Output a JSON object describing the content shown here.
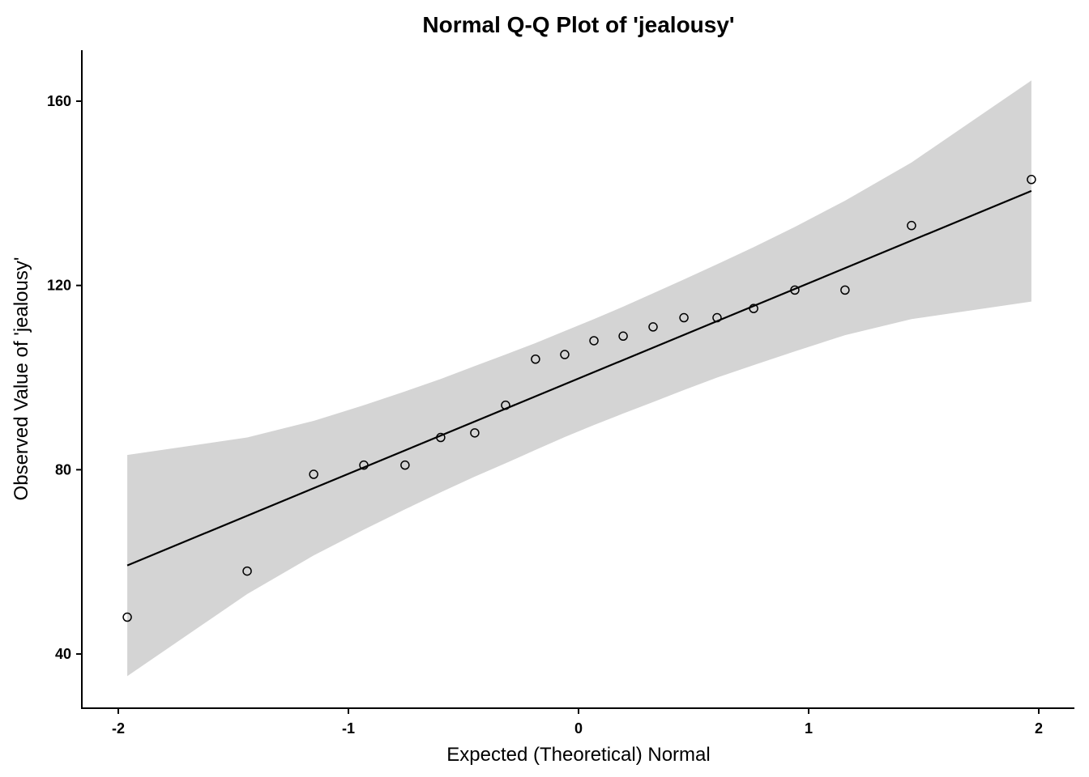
{
  "chart_data": {
    "type": "scatter",
    "title": "Normal Q-Q Plot of 'jealousy'",
    "xlabel": "Expected (Theoretical) Normal",
    "ylabel": "Observed Value of 'jealousy'",
    "xlim": [
      -2.15,
      2.15
    ],
    "ylim": [
      28,
      172
    ],
    "xticks": [
      -2,
      -1,
      0,
      1,
      2
    ],
    "xtick_labels": [
      "-2",
      "-1",
      "0",
      "1",
      "2"
    ],
    "yticks": [
      40,
      80,
      120,
      160
    ],
    "ytick_labels": [
      "40",
      "80",
      "120",
      "160"
    ],
    "grid": false,
    "colors": {
      "band": "#d4d4d4",
      "line": "#000000",
      "points": "#000000"
    },
    "points": {
      "x": [
        -1.961,
        -1.44,
        -1.151,
        -0.933,
        -0.754,
        -0.599,
        -0.451,
        -0.317,
        -0.187,
        -0.06,
        0.067,
        0.194,
        0.324,
        0.458,
        0.602,
        0.761,
        0.94,
        1.158,
        1.447,
        1.968
      ],
      "y": [
        48,
        58,
        79,
        81,
        81,
        87,
        88,
        94,
        104,
        105,
        108,
        109,
        111,
        113,
        113,
        115,
        119,
        119,
        133,
        143
      ]
    },
    "reference_line": {
      "intercept": 99.8,
      "slope": 20.69
    },
    "confidence_band": {
      "upper": [
        83.2,
        87.0,
        90.6,
        94.0,
        97.0,
        99.7,
        102.5,
        105.0,
        107.5,
        110.1,
        112.7,
        115.4,
        118.3,
        121.3,
        124.6,
        128.3,
        132.7,
        138.4,
        146.7,
        164.5
      ],
      "lower": [
        35.2,
        53.0,
        61.4,
        67.0,
        71.4,
        75.1,
        78.5,
        81.4,
        84.3,
        87.1,
        89.7,
        92.2,
        94.7,
        97.3,
        100.0,
        102.7,
        105.7,
        109.2,
        112.7,
        116.5
      ]
    }
  }
}
